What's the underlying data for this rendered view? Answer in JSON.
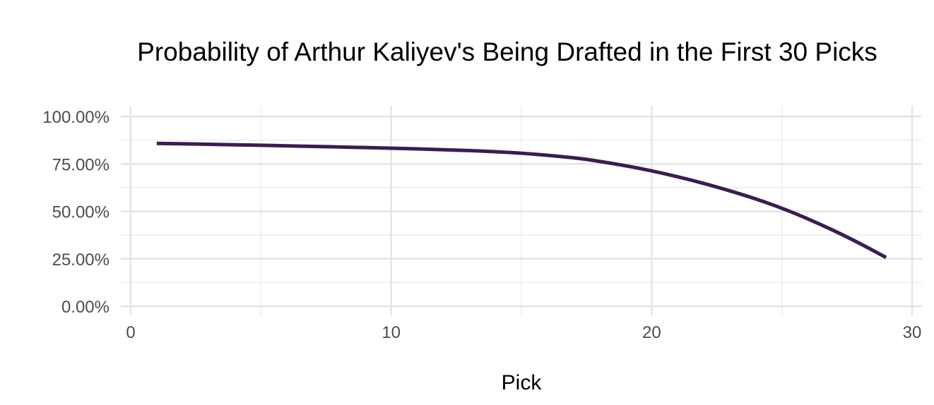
{
  "chart_data": {
    "type": "line",
    "title": "Probability of Arthur Kaliyev's Being Drafted in the First 30 Picks",
    "xlabel": "Pick",
    "ylabel": "",
    "xlim": [
      0,
      30
    ],
    "ylim": [
      0,
      100
    ],
    "x_ticks": [
      0,
      10,
      20,
      30
    ],
    "x_tick_labels": [
      "0",
      "10",
      "20",
      "30"
    ],
    "y_ticks": [
      0,
      25,
      50,
      75,
      100
    ],
    "y_tick_labels": [
      "0.00%",
      "25.00%",
      "50.00%",
      "75.00%",
      "100.00%"
    ],
    "grid": true,
    "legend": "none",
    "series": [
      {
        "color": "#3b1c53",
        "x": [
          1,
          3,
          5,
          7,
          9,
          11,
          13,
          15,
          17,
          18,
          19,
          20,
          21,
          22,
          23,
          24,
          25,
          26,
          27,
          28,
          29
        ],
        "y": [
          85.8,
          85.3,
          84.8,
          84.2,
          83.6,
          82.9,
          82.0,
          80.6,
          78.2,
          76.3,
          74.0,
          71.3,
          68.2,
          64.7,
          60.8,
          56.5,
          51.6,
          46.0,
          39.8,
          33.0,
          25.7
        ]
      }
    ]
  }
}
